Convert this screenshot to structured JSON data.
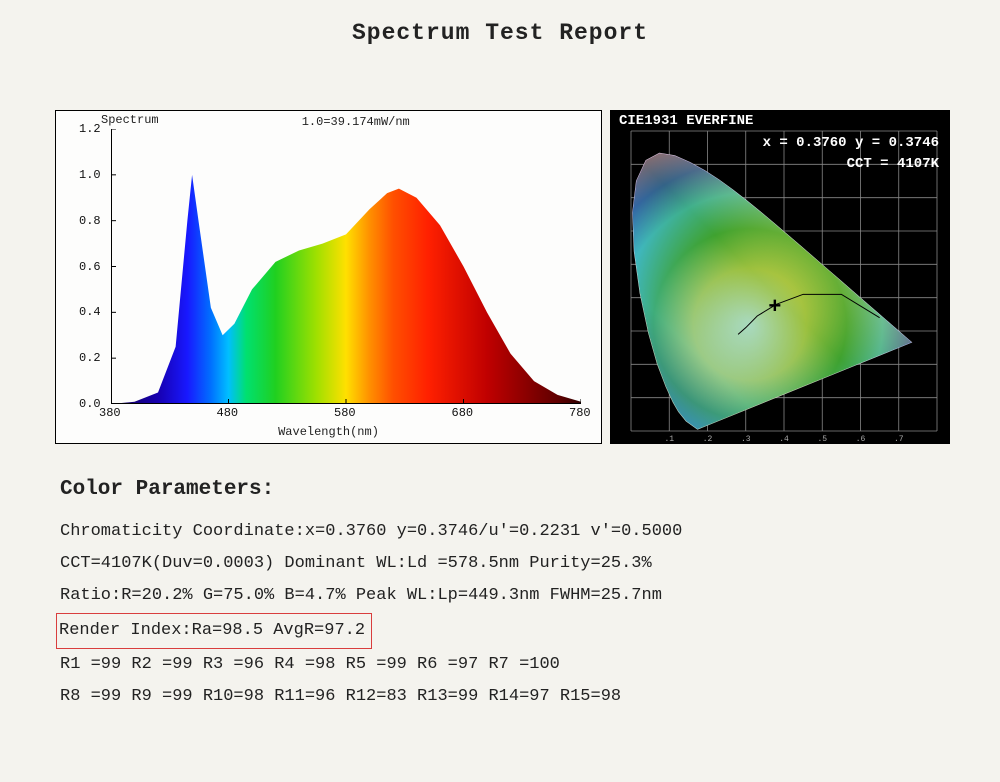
{
  "title": "Spectrum Test Report",
  "spectrum_chart": {
    "type": "area-spectrum",
    "small_title": "Spectrum",
    "top_label": "1.0=39.174mW/nm",
    "x_label": "Wavelength(nm)",
    "x_ticks": [
      380,
      480,
      580,
      680,
      780
    ],
    "y_ticks": [
      "0.0",
      "0.2",
      "0.4",
      "0.6",
      "0.8",
      "1.0",
      "1.2"
    ],
    "xlim": [
      380,
      780
    ],
    "ylim": [
      0,
      1.2
    ],
    "axis_color": "#000000",
    "background": "#fdfdfc",
    "tick_fontsize": 12,
    "curve_points": [
      [
        380,
        0.0
      ],
      [
        400,
        0.01
      ],
      [
        420,
        0.05
      ],
      [
        435,
        0.25
      ],
      [
        445,
        0.8
      ],
      [
        449,
        1.0
      ],
      [
        455,
        0.78
      ],
      [
        465,
        0.42
      ],
      [
        475,
        0.3
      ],
      [
        485,
        0.35
      ],
      [
        500,
        0.5
      ],
      [
        520,
        0.62
      ],
      [
        540,
        0.67
      ],
      [
        560,
        0.7
      ],
      [
        580,
        0.74
      ],
      [
        600,
        0.85
      ],
      [
        615,
        0.92
      ],
      [
        625,
        0.94
      ],
      [
        640,
        0.9
      ],
      [
        660,
        0.78
      ],
      [
        680,
        0.6
      ],
      [
        700,
        0.4
      ],
      [
        720,
        0.22
      ],
      [
        740,
        0.1
      ],
      [
        760,
        0.04
      ],
      [
        780,
        0.01
      ]
    ],
    "wavelength_colors": [
      [
        380,
        "#14004d"
      ],
      [
        420,
        "#1700b0"
      ],
      [
        445,
        "#1818ff"
      ],
      [
        465,
        "#0070ff"
      ],
      [
        480,
        "#00bfff"
      ],
      [
        495,
        "#00e070"
      ],
      [
        520,
        "#20d020"
      ],
      [
        555,
        "#a0e000"
      ],
      [
        580,
        "#ffe000"
      ],
      [
        600,
        "#ff9000"
      ],
      [
        620,
        "#ff5000"
      ],
      [
        650,
        "#ff2000"
      ],
      [
        700,
        "#c00000"
      ],
      [
        760,
        "#600000"
      ],
      [
        780,
        "#300000"
      ]
    ]
  },
  "cie_panel": {
    "title": "CIE1931 EVERFINE",
    "coord_line": "x = 0.3760 y = 0.3746",
    "cct_line": "CCT = 4107K",
    "background": "#000000",
    "text_color": "#ffffff",
    "grid_color": "#888888",
    "xlim": [
      0,
      0.8
    ],
    "ylim": [
      0,
      0.9
    ],
    "grid_step": 0.1,
    "cross_xy": [
      0.376,
      0.3746
    ],
    "locus_points": [
      [
        0.1741,
        0.005
      ],
      [
        0.144,
        0.0297
      ],
      [
        0.1241,
        0.0578
      ],
      [
        0.1096,
        0.0868
      ],
      [
        0.0913,
        0.1327
      ],
      [
        0.0687,
        0.2007
      ],
      [
        0.0454,
        0.295
      ],
      [
        0.0235,
        0.4127
      ],
      [
        0.0082,
        0.5384
      ],
      [
        0.0039,
        0.6548
      ],
      [
        0.0139,
        0.7502
      ],
      [
        0.0389,
        0.812
      ],
      [
        0.0743,
        0.8338
      ],
      [
        0.1142,
        0.8262
      ],
      [
        0.1547,
        0.8059
      ],
      [
        0.1929,
        0.7816
      ],
      [
        0.2296,
        0.7543
      ],
      [
        0.2658,
        0.7243
      ],
      [
        0.3016,
        0.6923
      ],
      [
        0.3373,
        0.6589
      ],
      [
        0.3731,
        0.6245
      ],
      [
        0.4087,
        0.5896
      ],
      [
        0.4441,
        0.5547
      ],
      [
        0.4788,
        0.5202
      ],
      [
        0.5125,
        0.4866
      ],
      [
        0.5448,
        0.4544
      ],
      [
        0.5752,
        0.4242
      ],
      [
        0.6029,
        0.3965
      ],
      [
        0.627,
        0.3725
      ],
      [
        0.6482,
        0.3514
      ],
      [
        0.6658,
        0.334
      ],
      [
        0.6801,
        0.3197
      ],
      [
        0.6915,
        0.3083
      ],
      [
        0.7006,
        0.2993
      ],
      [
        0.714,
        0.2859
      ],
      [
        0.726,
        0.274
      ],
      [
        0.734,
        0.266
      ]
    ],
    "gamut_fill_colors": {
      "green": "#3fa22f",
      "yellow": "#e8d94a",
      "cyan": "#3fbad6",
      "red": "#dc2b2e",
      "magenta": "#c23fa0",
      "blue": "#2a2fcf",
      "white": "#ffffff"
    }
  },
  "params": {
    "heading": "Color Parameters:",
    "line1": "Chromaticity Coordinate:x=0.3760  y=0.3746/u'=0.2231 v'=0.5000",
    "line2": "CCT=4107K(Duv=0.0003) Dominant WL:Ld =578.5nm Purity=25.3%",
    "line3": "Ratio:R=20.2% G=75.0% B=4.7%  Peak WL:Lp=449.3nm  FWHM=25.7nm",
    "render_line": "Render Index:Ra=98.5   AvgR=97.2",
    "highlight_color": "#d93d3d",
    "r1_7": "R1 =99   R2 =99   R3 =96   R4 =98   R5 =99   R6 =97   R7 =100",
    "r8_15": "R8 =99   R9 =99   R10=98   R11=96   R12=83   R13=99   R14=97   R15=98"
  }
}
